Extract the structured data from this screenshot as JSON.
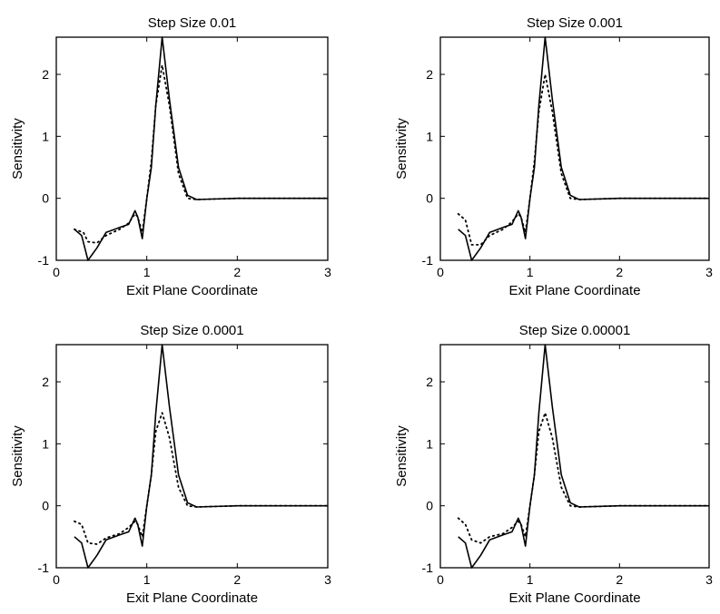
{
  "chart_data": [
    {
      "type": "line",
      "title": "Step Size 0.01",
      "xlabel": "Exit Plane Coordinate",
      "ylabel": "Sensitivity",
      "xlim": [
        0,
        3
      ],
      "ylim": [
        -1,
        2.6
      ],
      "xticks": [
        0,
        1,
        2,
        3
      ],
      "yticks": [
        -1,
        0,
        1,
        2
      ],
      "series": [
        {
          "style": "solid",
          "x": [
            0.2,
            0.28,
            0.35,
            0.45,
            0.55,
            0.7,
            0.8,
            0.87,
            0.9,
            0.95,
            1.0,
            1.05,
            1.1,
            1.17,
            1.25,
            1.35,
            1.45,
            1.55,
            2.0,
            2.5,
            3.0
          ],
          "y": [
            -0.5,
            -0.6,
            -1.0,
            -0.8,
            -0.55,
            -0.47,
            -0.42,
            -0.2,
            -0.3,
            -0.65,
            0.0,
            0.5,
            1.5,
            2.6,
            1.6,
            0.5,
            0.05,
            -0.02,
            0.0,
            0.0,
            0.0
          ]
        },
        {
          "style": "dotted",
          "x": [
            0.2,
            0.3,
            0.35,
            0.45,
            0.55,
            0.7,
            0.8,
            0.87,
            0.9,
            0.95,
            1.0,
            1.05,
            1.1,
            1.17,
            1.25,
            1.35,
            1.45,
            1.55,
            2.0,
            2.5,
            3.0
          ],
          "y": [
            -0.5,
            -0.55,
            -0.7,
            -0.72,
            -0.6,
            -0.5,
            -0.4,
            -0.25,
            -0.3,
            -0.55,
            0.0,
            0.6,
            1.5,
            2.15,
            1.5,
            0.4,
            0.0,
            -0.02,
            0.0,
            0.0,
            0.0
          ]
        }
      ]
    },
    {
      "type": "line",
      "title": "Step Size 0.001",
      "xlabel": "Exit Plane Coordinate",
      "ylabel": "Sensitivity",
      "xlim": [
        0,
        3
      ],
      "ylim": [
        -1,
        2.6
      ],
      "xticks": [
        0,
        1,
        2,
        3
      ],
      "yticks": [
        -1,
        0,
        1,
        2
      ],
      "series": [
        {
          "style": "solid",
          "x": [
            0.2,
            0.28,
            0.35,
            0.45,
            0.55,
            0.7,
            0.8,
            0.87,
            0.9,
            0.95,
            1.0,
            1.05,
            1.1,
            1.17,
            1.25,
            1.35,
            1.45,
            1.55,
            2.0,
            2.5,
            3.0
          ],
          "y": [
            -0.5,
            -0.6,
            -1.0,
            -0.8,
            -0.55,
            -0.47,
            -0.42,
            -0.2,
            -0.3,
            -0.65,
            0.0,
            0.5,
            1.5,
            2.6,
            1.6,
            0.5,
            0.05,
            -0.02,
            0.0,
            0.0,
            0.0
          ]
        },
        {
          "style": "dotted",
          "x": [
            0.2,
            0.28,
            0.35,
            0.45,
            0.55,
            0.7,
            0.8,
            0.87,
            0.9,
            0.95,
            1.0,
            1.05,
            1.1,
            1.17,
            1.25,
            1.35,
            1.45,
            1.55,
            2.0,
            2.5,
            3.0
          ],
          "y": [
            -0.25,
            -0.35,
            -0.75,
            -0.75,
            -0.6,
            -0.5,
            -0.38,
            -0.25,
            -0.3,
            -0.55,
            0.0,
            0.6,
            1.4,
            2.0,
            1.4,
            0.4,
            0.0,
            -0.02,
            0.0,
            0.0,
            0.0
          ]
        }
      ]
    },
    {
      "type": "line",
      "title": "Step Size 0.0001",
      "xlabel": "Exit Plane Coordinate",
      "ylabel": "Sensitivity",
      "xlim": [
        0,
        3
      ],
      "ylim": [
        -1,
        2.6
      ],
      "xticks": [
        0,
        1,
        2,
        3
      ],
      "yticks": [
        -1,
        0,
        1,
        2
      ],
      "series": [
        {
          "style": "solid",
          "x": [
            0.2,
            0.28,
            0.35,
            0.45,
            0.55,
            0.7,
            0.8,
            0.87,
            0.9,
            0.95,
            1.0,
            1.05,
            1.1,
            1.17,
            1.25,
            1.35,
            1.45,
            1.55,
            2.0,
            2.5,
            3.0
          ],
          "y": [
            -0.5,
            -0.6,
            -1.0,
            -0.8,
            -0.55,
            -0.47,
            -0.42,
            -0.2,
            -0.3,
            -0.65,
            0.0,
            0.5,
            1.5,
            2.6,
            1.6,
            0.5,
            0.05,
            -0.02,
            0.0,
            0.0,
            0.0
          ]
        },
        {
          "style": "dotted",
          "x": [
            0.2,
            0.28,
            0.35,
            0.45,
            0.55,
            0.7,
            0.8,
            0.87,
            0.9,
            0.95,
            1.0,
            1.05,
            1.1,
            1.17,
            1.25,
            1.35,
            1.45,
            1.55,
            2.0,
            2.5,
            3.0
          ],
          "y": [
            -0.25,
            -0.3,
            -0.6,
            -0.62,
            -0.52,
            -0.45,
            -0.35,
            -0.25,
            -0.3,
            -0.5,
            0.0,
            0.5,
            1.2,
            1.5,
            1.1,
            0.3,
            0.0,
            -0.02,
            0.0,
            0.0,
            0.0
          ]
        }
      ]
    },
    {
      "type": "line",
      "title": "Step Size 0.00001",
      "xlabel": "Exit Plane Coordinate",
      "ylabel": "Sensitivity",
      "xlim": [
        0,
        3
      ],
      "ylim": [
        -1,
        2.6
      ],
      "xticks": [
        0,
        1,
        2,
        3
      ],
      "yticks": [
        -1,
        0,
        1,
        2
      ],
      "series": [
        {
          "style": "solid",
          "x": [
            0.2,
            0.28,
            0.35,
            0.45,
            0.55,
            0.7,
            0.8,
            0.87,
            0.9,
            0.95,
            1.0,
            1.05,
            1.1,
            1.17,
            1.25,
            1.35,
            1.45,
            1.55,
            2.0,
            2.5,
            3.0
          ],
          "y": [
            -0.5,
            -0.6,
            -1.0,
            -0.8,
            -0.55,
            -0.47,
            -0.42,
            -0.2,
            -0.3,
            -0.65,
            0.0,
            0.5,
            1.5,
            2.6,
            1.6,
            0.5,
            0.05,
            -0.02,
            0.0,
            0.0,
            0.0
          ]
        },
        {
          "style": "dotted",
          "x": [
            0.2,
            0.28,
            0.35,
            0.45,
            0.55,
            0.7,
            0.8,
            0.87,
            0.9,
            0.95,
            1.0,
            1.05,
            1.1,
            1.17,
            1.25,
            1.35,
            1.45,
            1.55,
            2.0,
            2.5,
            3.0
          ],
          "y": [
            -0.2,
            -0.3,
            -0.55,
            -0.6,
            -0.5,
            -0.45,
            -0.35,
            -0.25,
            -0.3,
            -0.5,
            0.0,
            0.5,
            1.2,
            1.5,
            1.1,
            0.3,
            0.0,
            -0.02,
            0.0,
            0.0,
            0.0
          ]
        }
      ]
    }
  ]
}
